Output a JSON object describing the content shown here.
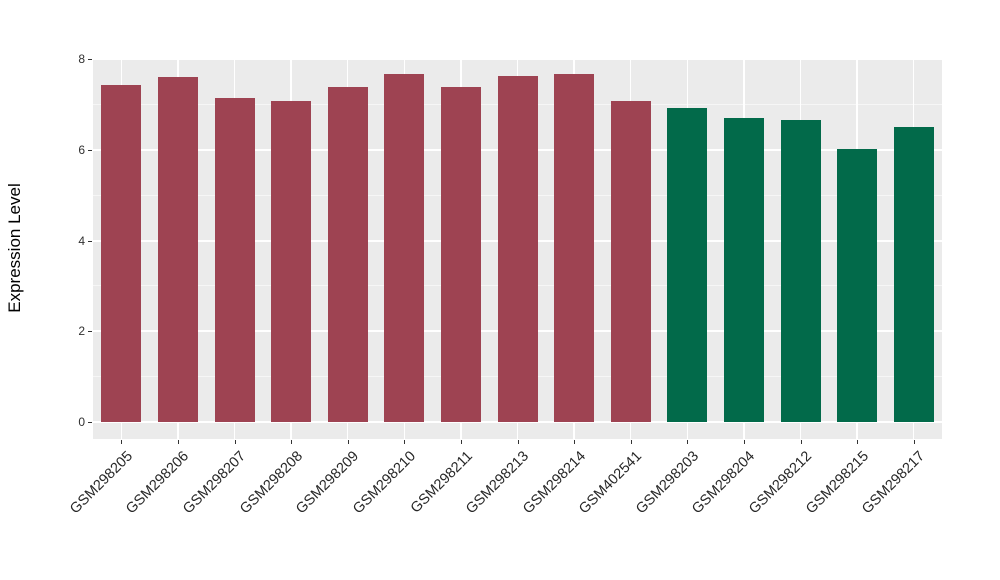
{
  "chart_data": {
    "type": "bar",
    "title": "",
    "xlabel": "",
    "ylabel": "Expression Level",
    "ylim": [
      0,
      8
    ],
    "yticks": [
      0,
      2,
      4,
      6,
      8
    ],
    "yticks_minor": [
      1,
      3,
      5,
      7
    ],
    "grid": "on",
    "legend_position": "none",
    "categories": [
      "GSM298205",
      "GSM298206",
      "GSM298207",
      "GSM298208",
      "GSM298209",
      "GSM298210",
      "GSM298211",
      "GSM298213",
      "GSM298214",
      "GSM402541",
      "GSM298203",
      "GSM298204",
      "GSM298212",
      "GSM298215",
      "GSM298217"
    ],
    "values": [
      7.42,
      7.6,
      7.13,
      7.07,
      7.39,
      7.66,
      7.39,
      7.62,
      7.66,
      7.08,
      6.92,
      6.7,
      6.65,
      6.01,
      6.5
    ],
    "bar_colors": [
      "#9E4352",
      "#9E4352",
      "#9E4352",
      "#9E4352",
      "#9E4352",
      "#9E4352",
      "#9E4352",
      "#9E4352",
      "#9E4352",
      "#9E4352",
      "#026A4A",
      "#026A4A",
      "#026A4A",
      "#026A4A",
      "#026A4A"
    ],
    "groups": [
      {
        "name": "maroon-group",
        "color": "#9E4352",
        "count": 10
      },
      {
        "name": "green-group",
        "color": "#026A4A",
        "count": 5
      }
    ],
    "style": {
      "panel_background": "#EBEBEB",
      "grid_major_color": "#FFFFFF",
      "grid_minor_color": "#FFFFFF",
      "tick_color": "#333333",
      "tick_label_color": "#262626",
      "axis_title_color": "#000000",
      "figure_background": "#FFFFFF"
    }
  }
}
